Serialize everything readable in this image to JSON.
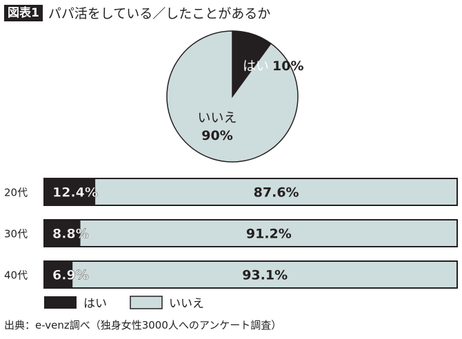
{
  "title": {
    "badge": "図表1",
    "text": "パパ活をしている／したことがあるか"
  },
  "colors": {
    "yes": "#231f20",
    "no": "#cddcdc"
  },
  "chart_data": [
    {
      "type": "pie",
      "slices": [
        {
          "label": "はい",
          "value": 10,
          "text": "10%"
        },
        {
          "label": "いいえ",
          "value": 90,
          "text": "90%"
        }
      ]
    },
    {
      "type": "bar",
      "orientation": "horizontal",
      "stacked": true,
      "categories": [
        "20代",
        "30代",
        "40代"
      ],
      "series": [
        {
          "name": "はい",
          "values": [
            12.4,
            8.8,
            6.9
          ]
        },
        {
          "name": "いいえ",
          "values": [
            87.6,
            91.2,
            93.1
          ]
        }
      ],
      "legend": "bottom-left"
    }
  ],
  "source": "出典：e-venz調べ（独身女性3000人へのアンケート調査）"
}
